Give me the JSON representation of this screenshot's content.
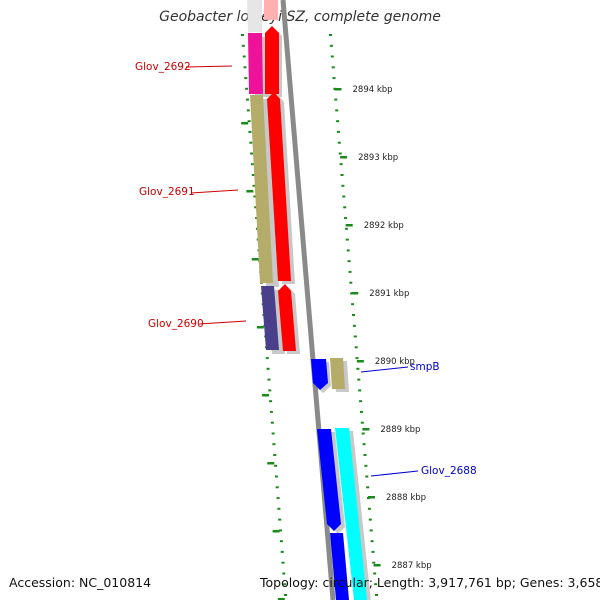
{
  "title": "Geobacter lovleyi SZ, complete genome",
  "footer": {
    "accession": "Accession: NC_010814",
    "topology": "Topology: circular; Length: 3,917,761 bp; Genes: 3,658"
  },
  "colors": {
    "backbone": "#8a8a8a",
    "tick": "#1a8a1a",
    "label_red": "#cc0000",
    "label_blue": "#0000cc",
    "gene_magenta": "#ee1199",
    "gene_khaki": "#b5ac6a",
    "gene_slate": "#4a3f8a",
    "gene_red": "#ff0000",
    "gene_blue": "#0000ff",
    "gene_cyan": "#00ffff"
  },
  "scale": {
    "unit": "kbp",
    "ticks": [
      {
        "kbp": 2894,
        "label": "2894 kbp"
      },
      {
        "kbp": 2893,
        "label": "2893 kbp"
      },
      {
        "kbp": 2892,
        "label": "2892 kbp"
      },
      {
        "kbp": 2891,
        "label": "2891 kbp"
      },
      {
        "kbp": 2890,
        "label": "2890 kbp"
      },
      {
        "kbp": 2889,
        "label": "2889 kbp"
      },
      {
        "kbp": 2888,
        "label": "2888 kbp"
      },
      {
        "kbp": 2887,
        "label": "2887 kbp"
      }
    ]
  },
  "genes": [
    {
      "name": "Glov_2692",
      "label": "Glov_2692",
      "color": "gene_magenta",
      "label_color": "label_red",
      "side": "left"
    },
    {
      "name": "Glov_2691",
      "label": "Glov_2691",
      "color": "gene_khaki",
      "label_color": "label_red",
      "side": "left"
    },
    {
      "name": "Glov_2690",
      "label": "Glov_2690",
      "color": "gene_slate",
      "label_color": "label_red",
      "side": "left"
    },
    {
      "name": "smpB",
      "label": "smpB",
      "color": "gene_khaki",
      "label_color": "label_blue",
      "side": "right"
    },
    {
      "name": "Glov_2688",
      "label": "Glov_2688",
      "color": "gene_cyan",
      "label_color": "label_blue",
      "side": "right"
    }
  ]
}
